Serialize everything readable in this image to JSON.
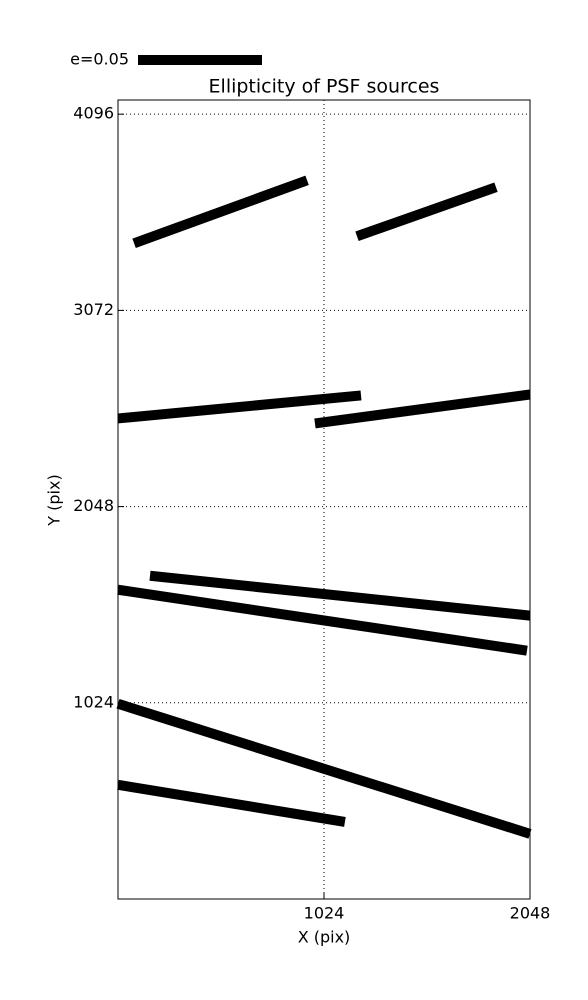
{
  "chart_data": {
    "type": "segments",
    "title": "Ellipticity of PSF sources",
    "x_label": "X (pix)",
    "y_label": "Y (pix)",
    "key_label": "e=0.05",
    "color": "#000000",
    "xlim": [
      0,
      2048
    ],
    "ylim": [
      0,
      4170
    ],
    "xticks": [
      1024,
      2048
    ],
    "yticks": [
      1024,
      2048,
      3072,
      4096
    ],
    "grid": true,
    "segments": [
      {
        "x": [
          80,
          940
        ],
        "y": [
          3422,
          3751
        ]
      },
      {
        "x": [
          1188,
          1879
        ],
        "y": [
          3459,
          3715
        ]
      },
      {
        "x": [
          0,
          1208
        ],
        "y": [
          2508,
          2628
        ]
      },
      {
        "x": [
          979,
          2048
        ],
        "y": [
          2482,
          2633
        ]
      },
      {
        "x": [
          159,
          2048
        ],
        "y": [
          1687,
          1479
        ]
      },
      {
        "x": [
          0,
          2033
        ],
        "y": [
          1614,
          1296
        ]
      },
      {
        "x": [
          0,
          2048
        ],
        "y": [
          1019,
          340
        ]
      },
      {
        "x": [
          0,
          1128
        ],
        "y": [
          596,
          402
        ]
      }
    ]
  }
}
